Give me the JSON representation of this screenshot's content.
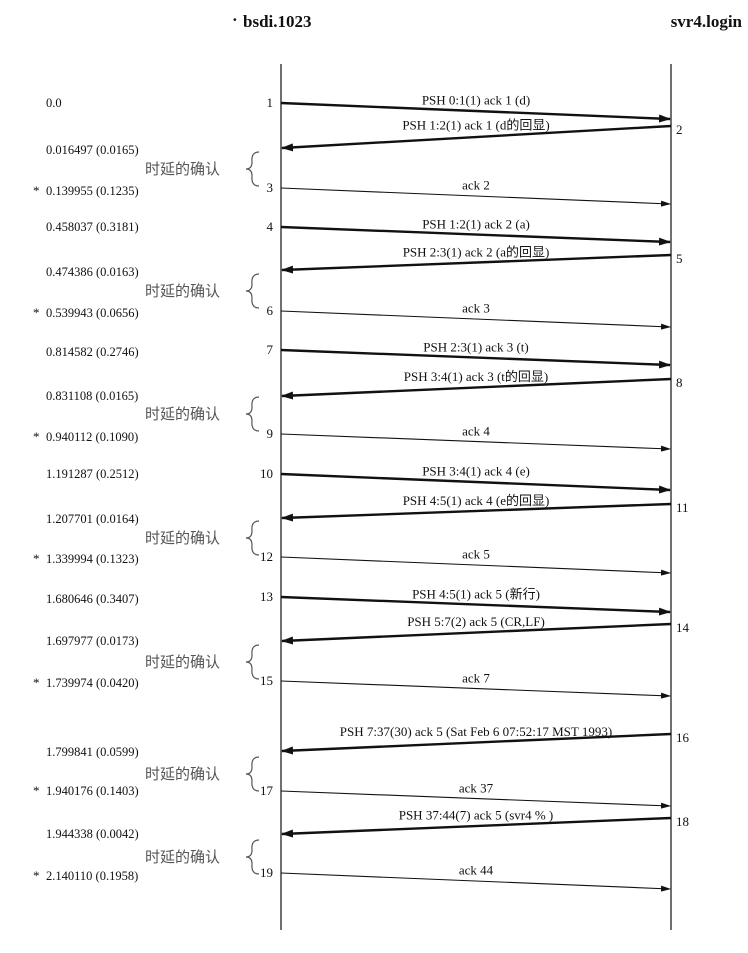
{
  "hosts": {
    "left": "bsdi.1023",
    "right": "svr4.login"
  },
  "delayed_ack_label": "时延的确认",
  "segments": [
    {
      "n": "1",
      "dir": "r",
      "label": "PSH 0:1(1) ack 1 (d)",
      "bold": true
    },
    {
      "n": "2",
      "dir": "l",
      "label": "PSH 1:2(1) ack 1 (d的回显)",
      "bold": true
    },
    {
      "n": "3",
      "dir": "r",
      "label": "ack 2",
      "bold": false
    },
    {
      "n": "4",
      "dir": "r",
      "label": "PSH 1:2(1) ack 2 (a)",
      "bold": true
    },
    {
      "n": "5",
      "dir": "l",
      "label": "PSH 2:3(1) ack 2 (a的回显)",
      "bold": true
    },
    {
      "n": "6",
      "dir": "r",
      "label": "ack 3",
      "bold": false
    },
    {
      "n": "7",
      "dir": "r",
      "label": "PSH 2:3(1) ack 3 (t)",
      "bold": true
    },
    {
      "n": "8",
      "dir": "l",
      "label": "PSH 3:4(1) ack 3 (t的回显)",
      "bold": true
    },
    {
      "n": "9",
      "dir": "r",
      "label": "ack 4",
      "bold": false
    },
    {
      "n": "10",
      "dir": "r",
      "label": "PSH 3:4(1) ack 4 (e)",
      "bold": true
    },
    {
      "n": "11",
      "dir": "l",
      "label": "PSH 4:5(1) ack 4 (e的回显)",
      "bold": true
    },
    {
      "n": "12",
      "dir": "r",
      "label": "ack 5",
      "bold": false
    },
    {
      "n": "13",
      "dir": "r",
      "label": "PSH 4:5(1) ack 5 (新行)",
      "bold": true
    },
    {
      "n": "14",
      "dir": "l",
      "label": "PSH 5:7(2) ack 5 (CR,LF)",
      "bold": true
    },
    {
      "n": "15",
      "dir": "r",
      "label": "ack 7",
      "bold": false
    },
    {
      "n": "16",
      "dir": "l",
      "label": "PSH 7:37(30) ack 5 (Sat Feb 6 07:52:17 MST 1993)",
      "bold": true
    },
    {
      "n": "17",
      "dir": "r",
      "label": "ack 37",
      "bold": false
    },
    {
      "n": "18",
      "dir": "l",
      "label": "PSH 37:44(7) ack 5 (svr4 % )",
      "bold": true
    },
    {
      "n": "19",
      "dir": "r",
      "label": "ack 44",
      "bold": false
    }
  ],
  "times": [
    {
      "text": "0.0",
      "star": false
    },
    {
      "text": "0.016497 (0.0165)",
      "star": false
    },
    {
      "text": "0.139955 (0.1235)",
      "star": true
    },
    {
      "text": "0.458037 (0.3181)",
      "star": false
    },
    {
      "text": "0.474386 (0.0163)",
      "star": false
    },
    {
      "text": "0.539943 (0.0656)",
      "star": true
    },
    {
      "text": "0.814582 (0.2746)",
      "star": false
    },
    {
      "text": "0.831108 (0.0165)",
      "star": false
    },
    {
      "text": "0.940112 (0.1090)",
      "star": true
    },
    {
      "text": "1.191287 (0.2512)",
      "star": false
    },
    {
      "text": "1.207701 (0.0164)",
      "star": false
    },
    {
      "text": "1.339994 (0.1323)",
      "star": true
    },
    {
      "text": "1.680646 (0.3407)",
      "star": false
    },
    {
      "text": "1.697977 (0.0173)",
      "star": false
    },
    {
      "text": "1.739974 (0.0420)",
      "star": true
    },
    {
      "text": "1.799841 (0.0599)",
      "star": false
    },
    {
      "text": "1.940176 (0.1403)",
      "star": true
    },
    {
      "text": "1.944338 (0.0042)",
      "star": false
    },
    {
      "text": "2.140110 (0.1958)",
      "star": true
    }
  ],
  "star_glyph": "*"
}
